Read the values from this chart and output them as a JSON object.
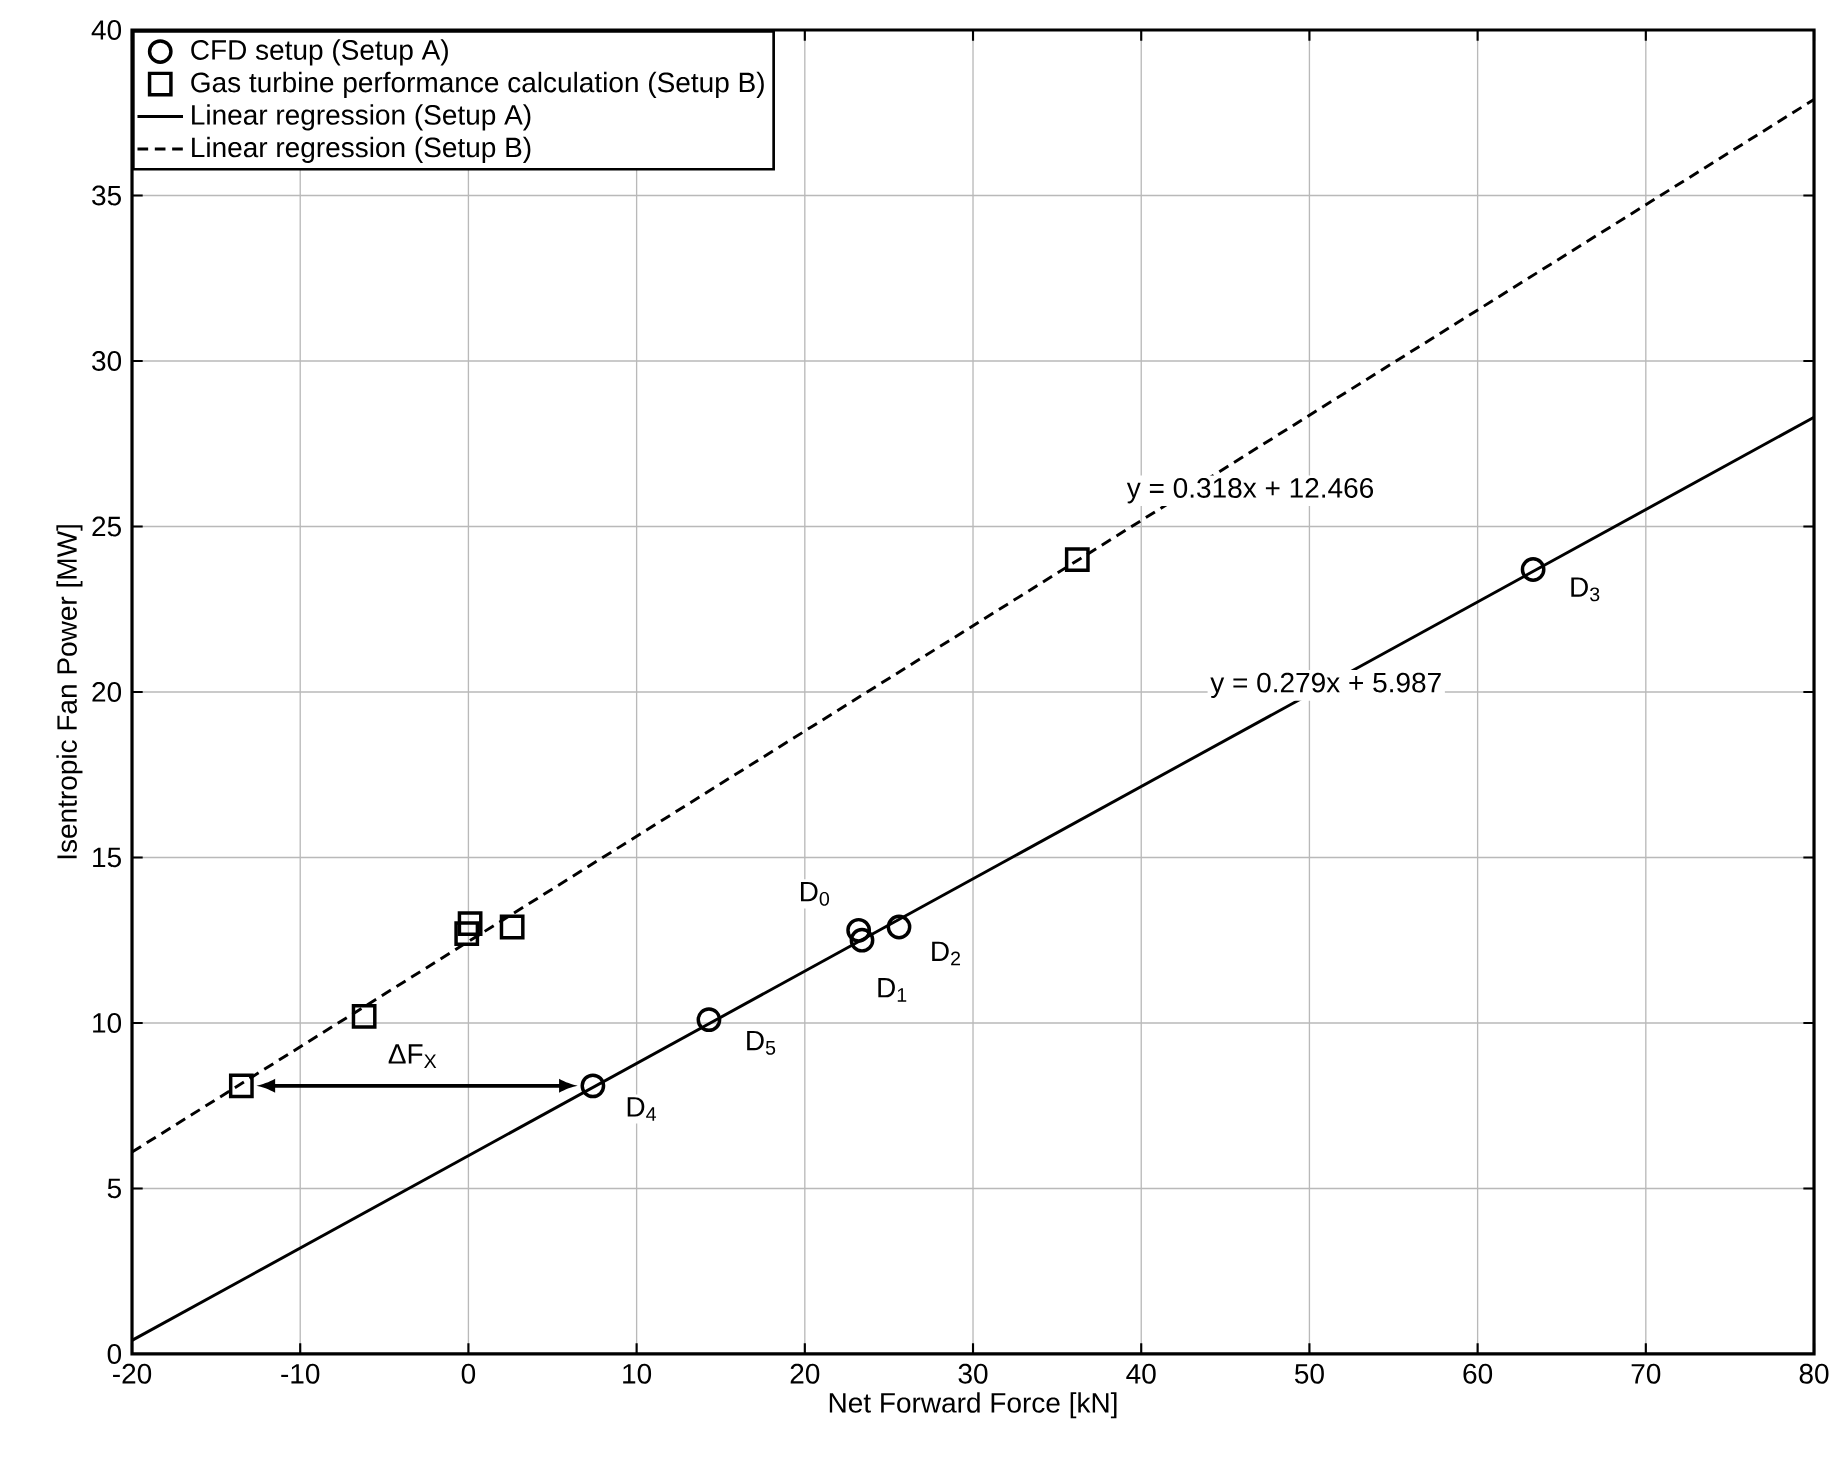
{
  "chart_data": {
    "type": "scatter",
    "xlabel": "Net Forward Force [kN]",
    "ylabel": "Isentropic Fan Power [MW]",
    "xlim": [
      -20,
      80
    ],
    "ylim": [
      0,
      40
    ],
    "xticks": [
      -20,
      -10,
      0,
      10,
      20,
      30,
      40,
      50,
      60,
      70,
      80
    ],
    "yticks": [
      0,
      5,
      10,
      15,
      20,
      25,
      30,
      35,
      40
    ],
    "grid": true,
    "legend": "top left",
    "series": [
      {
        "name": "CFD setup (Setup A)",
        "marker": "circle",
        "color": "#000000",
        "x": [
          7.4,
          14.3,
          23.2,
          23.4,
          25.6,
          63.3
        ],
        "values": [
          8.1,
          10.1,
          12.8,
          12.5,
          12.9,
          23.7
        ]
      },
      {
        "name": "Gas turbine performance calculation (Setup B)",
        "marker": "square",
        "color": "#000000",
        "x": [
          -13.5,
          -6.2,
          -0.1,
          0.1,
          2.6,
          36.2
        ],
        "values": [
          8.1,
          10.2,
          12.7,
          13.0,
          12.9,
          24.0
        ]
      },
      {
        "name": "Linear regression (Setup A)",
        "type": "line",
        "marker": "none",
        "line_style": "solid",
        "color": "#000000",
        "x": [
          -20,
          80
        ],
        "values": [
          0.41,
          28.3
        ]
      },
      {
        "name": "Linear regression (Setup B)",
        "type": "line",
        "marker": "none",
        "line_style": "dashed",
        "color": "#000000",
        "x": [
          -20,
          80
        ],
        "values": [
          6.1,
          37.9
        ]
      }
    ],
    "annotations": [
      {
        "text": "D$_{0}$",
        "x": 20.6,
        "y": 13.9
      },
      {
        "text": "D$_{1}$",
        "x": 25.2,
        "y": 11.0
      },
      {
        "text": "D$_{2}$",
        "x": 28.4,
        "y": 12.1
      },
      {
        "text": "D$_{3}$",
        "x": 66.4,
        "y": 23.1
      },
      {
        "text": "D$_{4}$",
        "x": 10.3,
        "y": 7.4
      },
      {
        "text": "D$_{5}$",
        "x": 17.4,
        "y": 9.4
      },
      {
        "text": "ΔF$_{X}$",
        "x": -3.3,
        "y": 9.0
      },
      "y = 0.318x + 12.466",
      {
        "text": "y = 0.279x + 5.987",
        "x": 51.0,
        "y": 20.2
      }
    ]
  }
}
